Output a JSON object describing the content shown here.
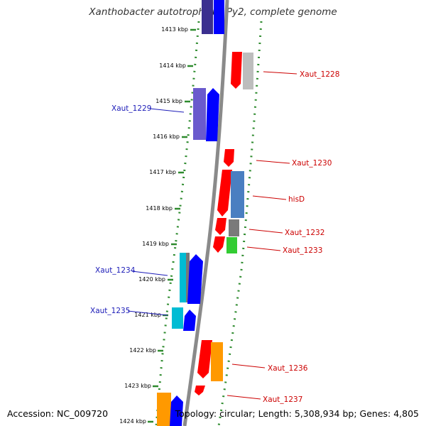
{
  "title": "Xanthobacter autotrophicus Py2, complete genome",
  "accession_text": "Accession: NC_009720",
  "summary_text": "Topology: circular; Length: 5,308,934 bp; Genes: 4,805",
  "colors": {
    "backbone": "#8a8a8a",
    "dotted_guides": "#2e8b2e",
    "left_label": "#1c1cb8",
    "right_label": "#cc0000"
  },
  "kbp_ticks": [
    "1413 kbp",
    "1414 kbp",
    "1415 kbp",
    "1416 kbp",
    "1417 kbp",
    "1418 kbp",
    "1419 kbp",
    "1420 kbp",
    "1421 kbp",
    "1422 kbp",
    "1423 kbp",
    "1424 kbp"
  ],
  "gene_labels_left": [
    "Xaut_1229",
    "Xaut_1234",
    "Xaut_1235"
  ],
  "gene_labels_right": [
    "Xaut_1228",
    "Xaut_1230",
    "hisD",
    "Xaut_1232",
    "Xaut_1233",
    "Xaut_1236",
    "Xaut_1237"
  ]
}
